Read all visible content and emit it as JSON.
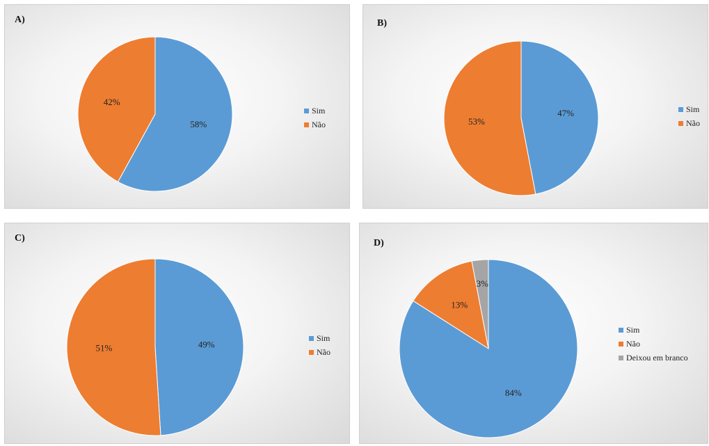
{
  "chart_data": [
    {
      "type": "pie",
      "panel_label": "A)",
      "slices": [
        {
          "label": "Sim",
          "value": 58,
          "text": "58%",
          "color": "#5b9bd5"
        },
        {
          "label": "Não",
          "value": 42,
          "text": "42%",
          "color": "#ed7d31"
        }
      ],
      "legend": [
        "Sim",
        "Não"
      ],
      "legend_position": "right"
    },
    {
      "type": "pie",
      "panel_label": "B)",
      "slices": [
        {
          "label": "Sim",
          "value": 47,
          "text": "47%",
          "color": "#5b9bd5"
        },
        {
          "label": "Não",
          "value": 53,
          "text": "53%",
          "color": "#ed7d31"
        }
      ],
      "legend": [
        "Sim",
        "Não"
      ],
      "legend_position": "right"
    },
    {
      "type": "pie",
      "panel_label": "C)",
      "slices": [
        {
          "label": "Sim",
          "value": 49,
          "text": "49%",
          "color": "#5b9bd5"
        },
        {
          "label": "Não",
          "value": 51,
          "text": "51%",
          "color": "#ed7d31"
        }
      ],
      "legend": [
        "Sim",
        "Não"
      ],
      "legend_position": "right"
    },
    {
      "type": "pie",
      "panel_label": "D)",
      "slices": [
        {
          "label": "Sim",
          "value": 84,
          "text": "84%",
          "color": "#5b9bd5"
        },
        {
          "label": "Não",
          "value": 13,
          "text": "13%",
          "color": "#ed7d31"
        },
        {
          "label": "Deixou em branco",
          "value": 3,
          "text": "3%",
          "color": "#a5a5a5"
        }
      ],
      "legend": [
        "Sim",
        "Não",
        "Deixou em branco"
      ],
      "legend_position": "right"
    }
  ]
}
